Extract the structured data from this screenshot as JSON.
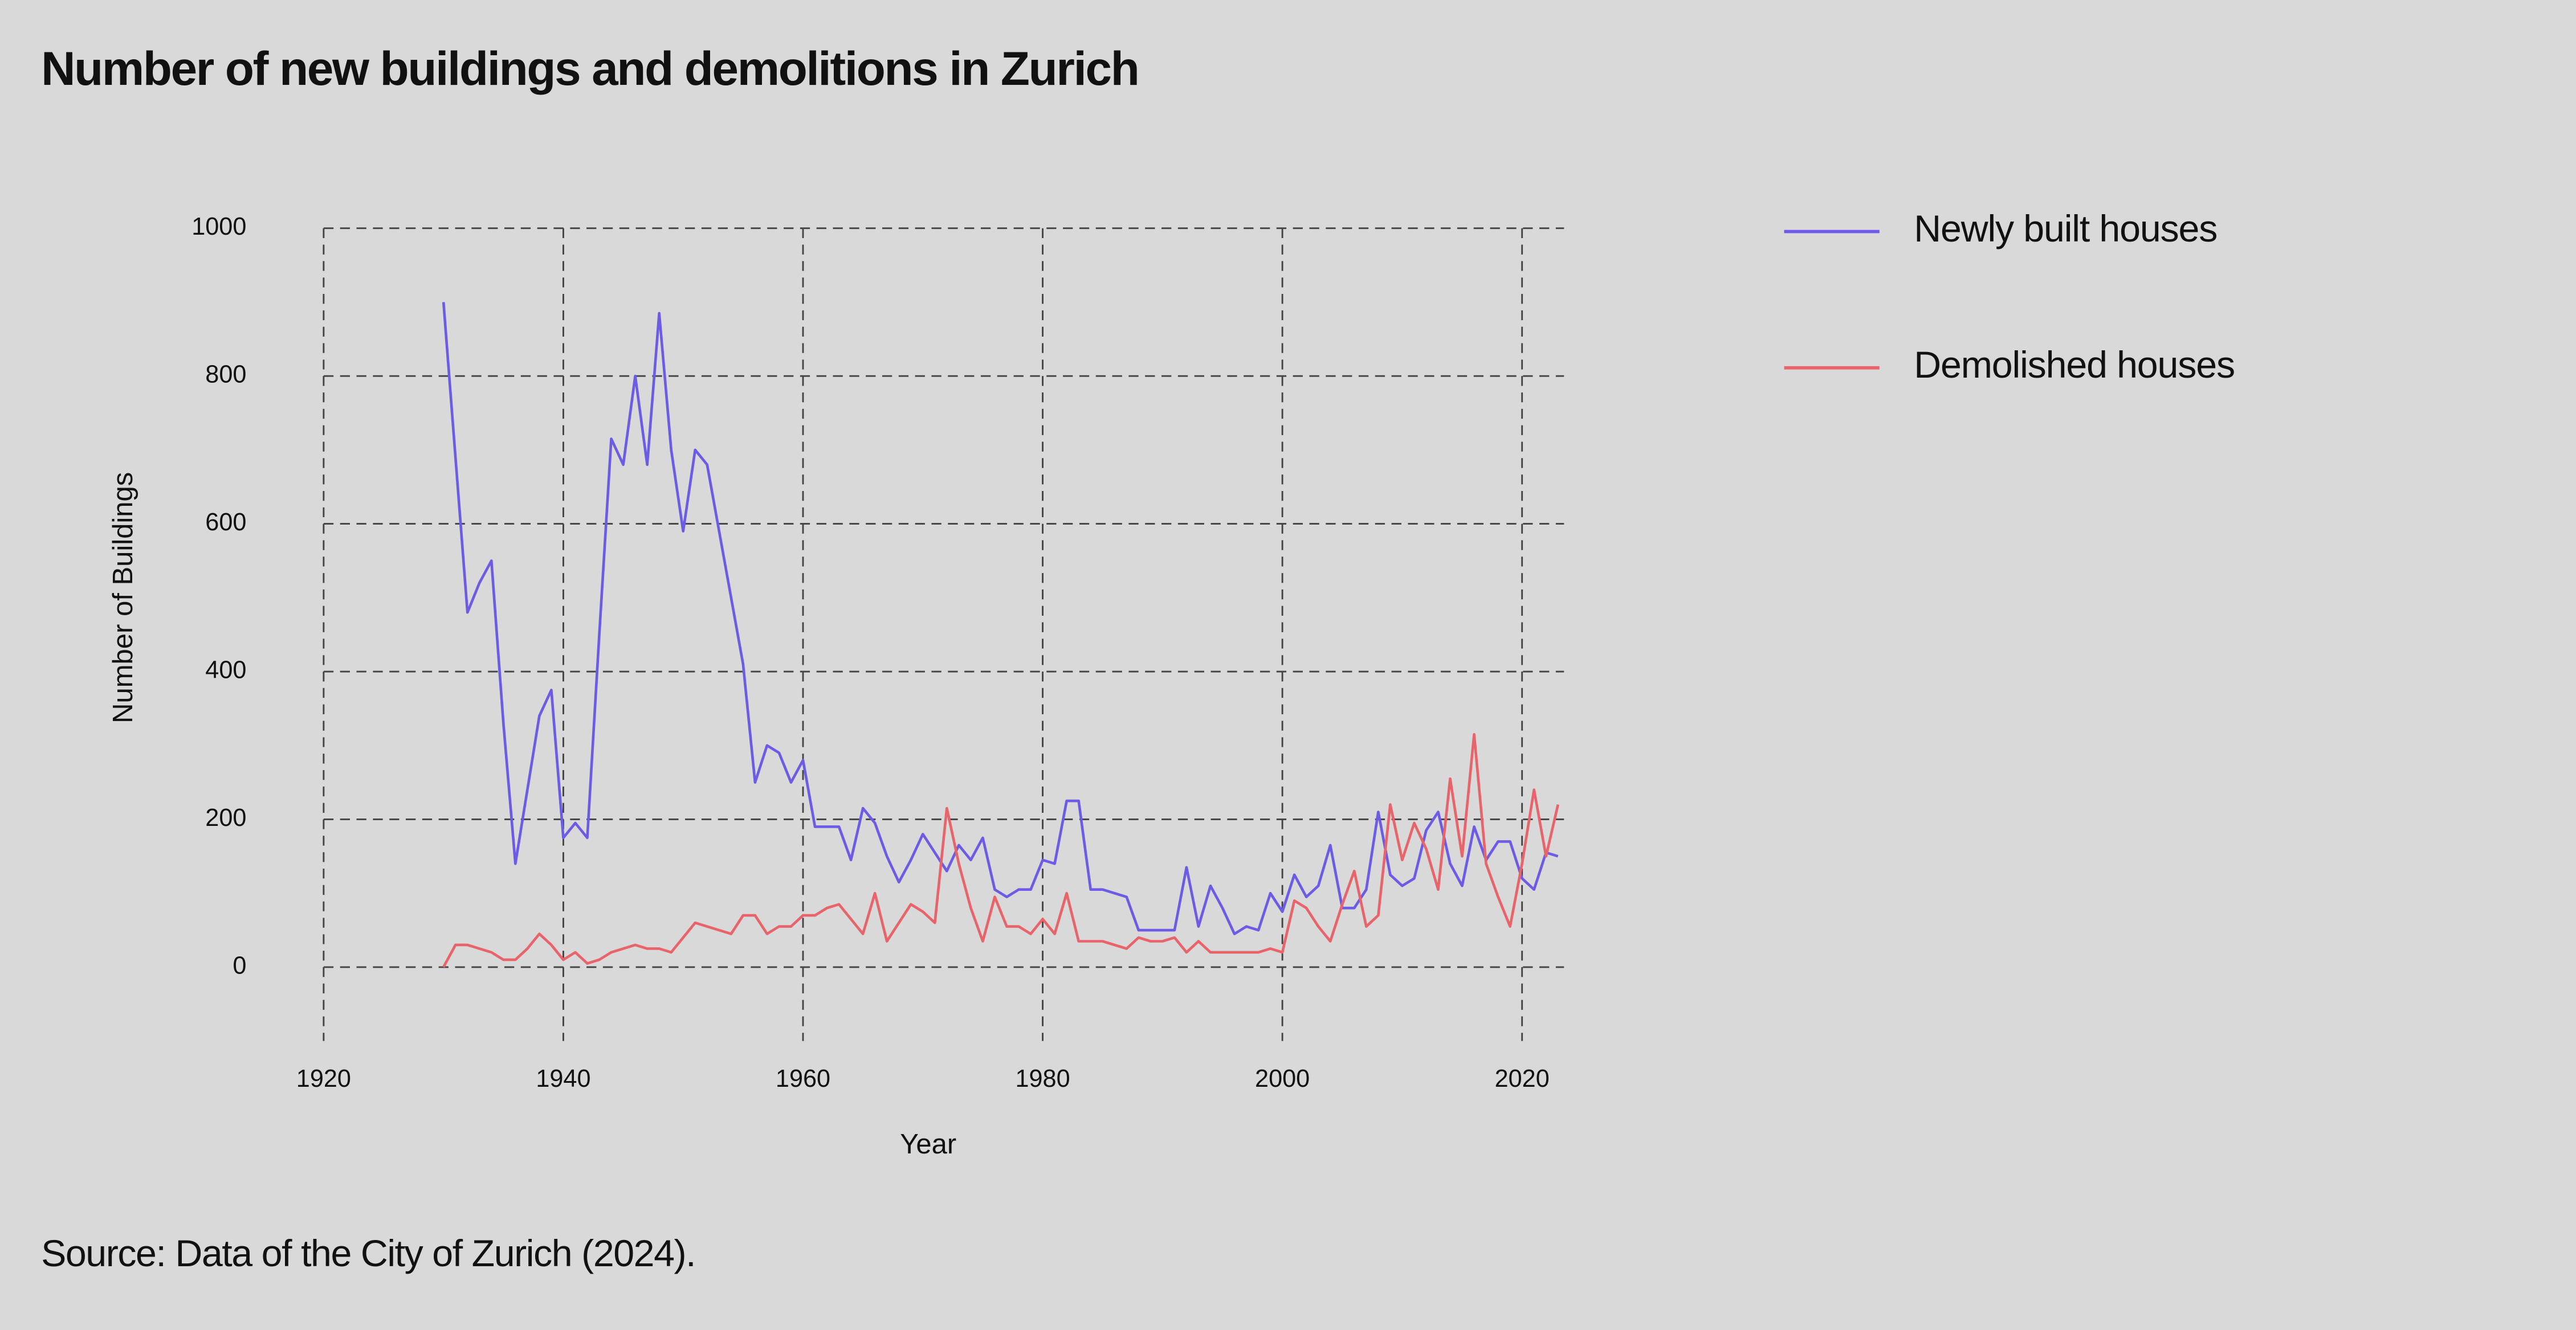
{
  "chart_data": {
    "type": "line",
    "title": "Number of new buildings and demolitions in Zurich",
    "x_label": "Year",
    "y_label": "Number of Buildings",
    "note": "Source: Data of the City of Zurich (2024).",
    "x": [
      1930,
      1931,
      1932,
      1933,
      1934,
      1935,
      1936,
      1937,
      1938,
      1939,
      1940,
      1941,
      1942,
      1943,
      1944,
      1945,
      1946,
      1947,
      1948,
      1949,
      1950,
      1951,
      1952,
      1953,
      1954,
      1955,
      1956,
      1957,
      1958,
      1959,
      1960,
      1961,
      1962,
      1963,
      1964,
      1965,
      1966,
      1967,
      1968,
      1969,
      1970,
      1971,
      1972,
      1973,
      1974,
      1975,
      1976,
      1977,
      1978,
      1979,
      1980,
      1981,
      1982,
      1983,
      1984,
      1985,
      1986,
      1987,
      1988,
      1989,
      1990,
      1991,
      1992,
      1993,
      1994,
      1995,
      1996,
      1997,
      1998,
      1999,
      2000,
      2001,
      2002,
      2003,
      2004,
      2005,
      2006,
      2007,
      2008,
      2009,
      2010,
      2011,
      2012,
      2013,
      2014,
      2015,
      2016,
      2017,
      2018,
      2019,
      2020,
      2021,
      2022,
      2023
    ],
    "series": [
      {
        "name": "Newly built houses",
        "color": "#6b5be6",
        "values": [
          900,
          690,
          480,
          520,
          550,
          330,
          140,
          240,
          340,
          375,
          175,
          195,
          175,
          450,
          715,
          680,
          800,
          680,
          885,
          700,
          590,
          700,
          680,
          590,
          500,
          410,
          250,
          300,
          290,
          250,
          280,
          190,
          190,
          190,
          145,
          215,
          195,
          150,
          115,
          145,
          180,
          155,
          130,
          165,
          145,
          175,
          105,
          95,
          105,
          105,
          145,
          140,
          225,
          225,
          105,
          105,
          100,
          95,
          50,
          50,
          50,
          50,
          135,
          55,
          110,
          80,
          45,
          55,
          50,
          100,
          75,
          125,
          95,
          110,
          165,
          80,
          80,
          105,
          210,
          125,
          110,
          120,
          185,
          210,
          140,
          110,
          190,
          145,
          170,
          170,
          120,
          105,
          155,
          150
        ]
      },
      {
        "name": "Demolished houses",
        "color": "#e8636a",
        "values": [
          0,
          30,
          30,
          25,
          20,
          10,
          10,
          25,
          45,
          30,
          10,
          20,
          5,
          10,
          20,
          25,
          30,
          25,
          25,
          20,
          40,
          60,
          55,
          50,
          45,
          70,
          70,
          45,
          55,
          55,
          70,
          70,
          80,
          85,
          65,
          45,
          100,
          35,
          60,
          85,
          75,
          60,
          215,
          140,
          80,
          35,
          95,
          55,
          55,
          45,
          65,
          45,
          100,
          35,
          35,
          35,
          30,
          25,
          40,
          35,
          35,
          40,
          20,
          35,
          20,
          20,
          20,
          20,
          20,
          25,
          20,
          90,
          80,
          55,
          35,
          85,
          130,
          55,
          70,
          220,
          145,
          195,
          160,
          105,
          255,
          150,
          315,
          140,
          95,
          55,
          140,
          240,
          150,
          220
        ]
      }
    ],
    "xlim": [
      1920,
      2023.5
    ],
    "xticks": [
      1920,
      1940,
      1960,
      1980,
      2000,
      2020
    ],
    "ylim": [
      -100,
      1000
    ],
    "yticks": [
      0,
      200,
      400,
      600,
      800,
      1000
    ],
    "grid": true,
    "legend": "right"
  }
}
